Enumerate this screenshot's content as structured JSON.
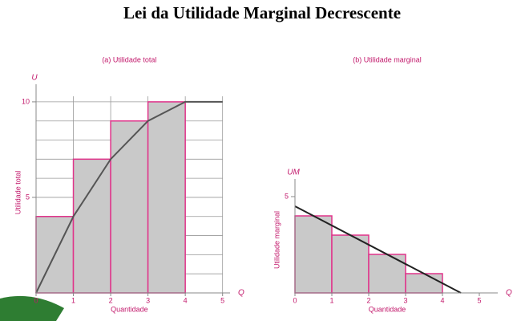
{
  "title": "Lei da Utilidade Marginal Decrescente",
  "chart_data": [
    {
      "type": "histogram",
      "title": "(a) Utilidade total",
      "xlabel": "Quantidade",
      "ylabel": "Utilidade total",
      "x_symbol": "Q",
      "y_symbol": "U",
      "bins": [
        0,
        1,
        2,
        3,
        4
      ],
      "values": [
        4,
        7,
        9,
        10
      ],
      "color": "#c9c9c9",
      "edge_color": "#e0338a",
      "line": {
        "x": [
          0,
          1,
          2,
          3,
          4,
          5
        ],
        "values": [
          0,
          4,
          7,
          9,
          10,
          10
        ],
        "color": "#555555"
      },
      "xlim": [
        0,
        5.2
      ],
      "ylim": [
        0,
        10.5
      ],
      "xticks": [
        0,
        1,
        2,
        3,
        4,
        5
      ],
      "yticks": [
        5,
        10
      ],
      "grid": true,
      "ygrid": [
        1,
        2,
        3,
        4,
        5,
        6,
        7,
        8,
        9,
        10
      ]
    },
    {
      "type": "histogram",
      "title": "(b) Utilidade marginal",
      "xlabel": "Quantidade",
      "ylabel": "Utilidade marginal",
      "x_symbol": "Q",
      "y_symbol": "UM",
      "bins": [
        0,
        1,
        2,
        3,
        4
      ],
      "values": [
        4,
        3,
        2,
        1
      ],
      "color": "#c9c9c9",
      "edge_color": "#e0338a",
      "line": {
        "x": [
          0,
          4.5
        ],
        "values": [
          4.5,
          0
        ],
        "color": "#222222"
      },
      "xlim": [
        0,
        5.5
      ],
      "ylim": [
        0,
        5.5
      ],
      "xticks": [
        0,
        1,
        2,
        3,
        4,
        5
      ],
      "yticks": [
        5
      ],
      "grid": false
    }
  ]
}
